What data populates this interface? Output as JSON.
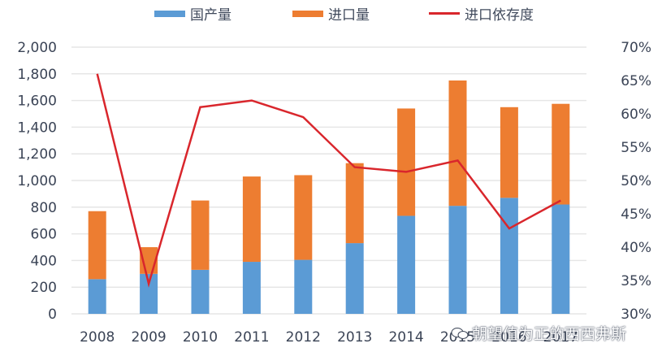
{
  "legend": {
    "domestic": "国产量",
    "imports": "进口量",
    "dependency": "进口依存度"
  },
  "colors": {
    "domestic": "#5b9bd5",
    "imports": "#ed7d31",
    "dependency": "#d9262c",
    "grid": "#e6e6e6",
    "text": "#3b4456"
  },
  "watermark": "朝望值为正的西西弗斯",
  "chart_data": {
    "type": "bar",
    "stacked": true,
    "title": "",
    "xlabel": "",
    "ylabel": "",
    "categories": [
      "2008",
      "2009",
      "2010",
      "2011",
      "2012",
      "2013",
      "2014",
      "2015",
      "2016",
      "2017"
    ],
    "series": [
      {
        "name": "国产量",
        "type": "bar",
        "axis": "left",
        "values": [
          260,
          300,
          330,
          390,
          405,
          530,
          735,
          810,
          870,
          820
        ]
      },
      {
        "name": "进口量",
        "type": "bar",
        "axis": "left",
        "values": [
          510,
          200,
          520,
          640,
          635,
          600,
          805,
          940,
          680,
          755
        ]
      },
      {
        "name": "进口依存度",
        "type": "line",
        "axis": "right",
        "values": [
          66.0,
          34.5,
          61.0,
          62.0,
          59.5,
          52.0,
          51.3,
          53.0,
          42.8,
          47.0
        ]
      }
    ],
    "ylim": [
      0,
      2000
    ],
    "y_ticks": [
      "0",
      "200",
      "400",
      "600",
      "800",
      "1,000",
      "1,200",
      "1,400",
      "1,600",
      "1,800",
      "2,000"
    ],
    "y2lim": [
      30,
      70
    ],
    "y2_ticks": [
      "30%",
      "35%",
      "40%",
      "45%",
      "50%",
      "55%",
      "60%",
      "65%",
      "70%"
    ],
    "grid": true,
    "legend_position": "top"
  }
}
